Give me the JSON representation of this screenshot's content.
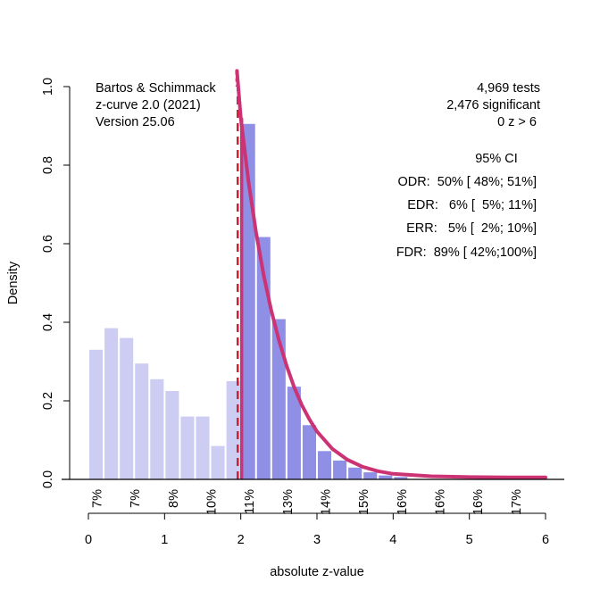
{
  "chart_data": {
    "type": "bar",
    "title": "",
    "xlabel": "absolute z-value",
    "ylabel": "Density",
    "xlim": [
      0,
      6
    ],
    "ylim": [
      0,
      1.0
    ],
    "x_ticks": [
      "0",
      "1",
      "2",
      "3",
      "4",
      "5",
      "6"
    ],
    "y_ticks": [
      "0.0",
      "0.2",
      "0.4",
      "0.6",
      "0.8",
      "1.0"
    ],
    "grid": false,
    "bin_width": 0.2,
    "significance_threshold": 1.96,
    "colors": {
      "nonsignificant_bars": "#cdcdf3",
      "significant_bars": "#8f8fe6",
      "curve": "#cc3374",
      "threshold_line": "#cc2233",
      "axis": "#000000"
    },
    "series": [
      {
        "name": "non-significant",
        "bin_starts": [
          0.0,
          0.2,
          0.4,
          0.6,
          0.8,
          1.0,
          1.2,
          1.4,
          1.6,
          1.8
        ],
        "values": [
          0.33,
          0.385,
          0.36,
          0.295,
          0.255,
          0.225,
          0.16,
          0.16,
          0.085,
          0.25
        ]
      },
      {
        "name": "significant",
        "bin_starts": [
          2.0,
          2.2,
          2.4,
          2.6,
          2.8,
          3.0,
          3.2,
          3.4,
          3.6,
          3.8,
          4.0
        ],
        "values": [
          0.905,
          0.617,
          0.408,
          0.236,
          0.138,
          0.072,
          0.048,
          0.03,
          0.018,
          0.01,
          0.006
        ]
      },
      {
        "name": "z-curve fit",
        "type": "line",
        "x": [
          1.95,
          2.0,
          2.1,
          2.2,
          2.3,
          2.4,
          2.5,
          2.6,
          2.7,
          2.8,
          2.9,
          3.0,
          3.2,
          3.4,
          3.6,
          3.8,
          4.0,
          4.5,
          5.0,
          5.5,
          6.0
        ],
        "y": [
          1.04,
          0.92,
          0.76,
          0.63,
          0.52,
          0.43,
          0.355,
          0.29,
          0.235,
          0.19,
          0.153,
          0.122,
          0.078,
          0.05,
          0.032,
          0.021,
          0.014,
          0.008,
          0.006,
          0.005,
          0.005
        ]
      }
    ],
    "power_labels": {
      "positions": [
        0.1,
        0.6,
        1.1,
        1.6,
        2.1,
        2.6,
        3.1,
        3.6,
        4.1,
        4.6,
        5.1,
        5.6
      ],
      "labels": [
        "7%",
        "7%",
        "8%",
        "10%",
        "11%",
        "13%",
        "14%",
        "15%",
        "16%",
        "16%",
        "16%",
        "17%"
      ]
    },
    "annotations": {
      "credits": [
        "Bartos & Schimmack",
        "z-curve 2.0 (2021)",
        "Version 25.06"
      ],
      "summary": [
        "4,969 tests",
        "2,476 significant",
        "0 z > 6"
      ],
      "ci_header": "95% CI",
      "stats": [
        "ODR:  50% [ 48%; 51%]",
        "EDR:   6% [  5%; 11%]",
        "ERR:   5% [  2%; 10%]",
        "FDR:  89% [ 42%;100%]"
      ]
    }
  }
}
